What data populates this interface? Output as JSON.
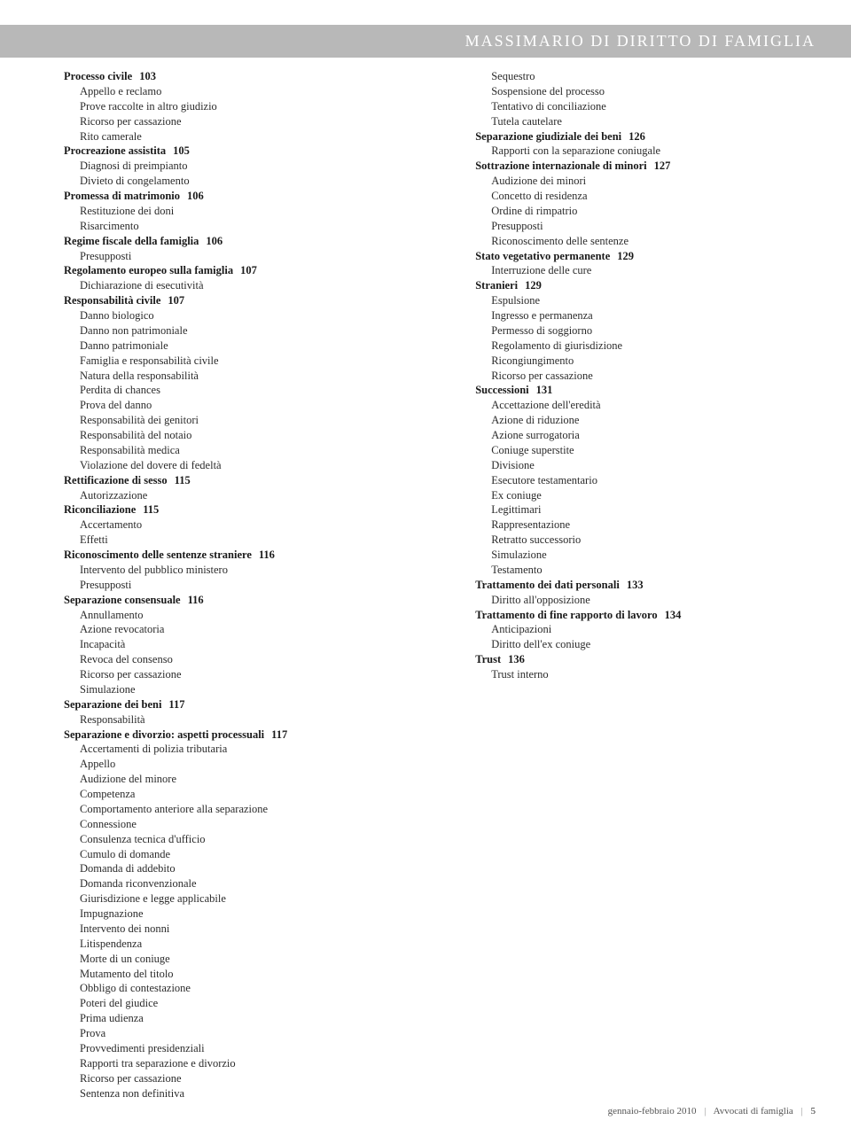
{
  "header": "MASSIMARIO DI DIRITTO DI FAMIGLIA",
  "footer": {
    "date": "gennaio-febbraio 2010",
    "pub": "Avvocati di famiglia",
    "page": "5"
  },
  "left": [
    {
      "h": "Processo civile",
      "pg": "103",
      "subs": [
        "Appello e reclamo",
        "Prove raccolte in altro giudizio",
        "Ricorso per cassazione",
        "Rito camerale"
      ]
    },
    {
      "h": "Procreazione assistita",
      "pg": "105",
      "subs": [
        "Diagnosi di preimpianto",
        "Divieto di congelamento"
      ]
    },
    {
      "h": "Promessa di matrimonio",
      "pg": "106",
      "subs": [
        "Restituzione dei doni",
        "Risarcimento"
      ]
    },
    {
      "h": "Regime fiscale della famiglia",
      "pg": "106",
      "subs": [
        "Presupposti"
      ]
    },
    {
      "h": "Regolamento europeo sulla famiglia",
      "pg": "107",
      "subs": [
        "Dichiarazione di esecutività"
      ]
    },
    {
      "h": "Responsabilità civile",
      "pg": "107",
      "subs": [
        "Danno biologico",
        "Danno non patrimoniale",
        "Danno patrimoniale",
        "Famiglia e responsabilità civile",
        "Natura della responsabilità",
        "Perdita di chances",
        "Prova del danno",
        "Responsabilità dei genitori",
        "Responsabilità del notaio",
        "Responsabilità medica",
        "Violazione del dovere di fedeltà"
      ]
    },
    {
      "h": "Rettificazione di sesso",
      "pg": "115",
      "subs": [
        "Autorizzazione"
      ]
    },
    {
      "h": "Riconciliazione",
      "pg": "115",
      "subs": [
        "Accertamento",
        "Effetti"
      ]
    },
    {
      "h": "Riconoscimento delle sentenze straniere",
      "pg": "116",
      "subs": [
        "Intervento del pubblico ministero",
        "Presupposti"
      ]
    },
    {
      "h": "Separazione consensuale",
      "pg": "116",
      "subs": [
        "Annullamento",
        "Azione revocatoria",
        "Incapacità",
        "Revoca del consenso",
        "Ricorso per cassazione",
        "Simulazione"
      ]
    },
    {
      "h": "Separazione dei beni",
      "pg": "117",
      "subs": [
        "Responsabilità"
      ]
    },
    {
      "h": "Separazione e divorzio: aspetti processuali",
      "pg": "117",
      "subs": [
        "Accertamenti di polizia tributaria",
        "Appello",
        "Audizione del minore",
        "Competenza",
        "Comportamento anteriore alla separazione",
        "Connessione",
        "Consulenza tecnica d'ufficio",
        "Cumulo di domande",
        "Domanda di addebito",
        "Domanda riconvenzionale",
        "Giurisdizione e legge applicabile",
        "Impugnazione",
        "Intervento dei nonni",
        "Litispendenza",
        "Morte di un coniuge",
        "Mutamento del titolo",
        "Obbligo di contestazione",
        "Poteri del giudice",
        "Prima udienza",
        "Prova",
        "Provvedimenti presidenziali",
        "Rapporti tra separazione e divorzio",
        "Ricorso per cassazione",
        "Sentenza non definitiva"
      ]
    }
  ],
  "right": [
    {
      "h": "",
      "pg": "",
      "subs": [
        "Sequestro",
        "Sospensione del processo",
        "Tentativo di conciliazione",
        "Tutela cautelare"
      ]
    },
    {
      "h": "Separazione giudiziale dei beni",
      "pg": "126",
      "subs": [
        "Rapporti con la separazione coniugale"
      ]
    },
    {
      "h": "Sottrazione internazionale di minori",
      "pg": "127",
      "subs": [
        "Audizione dei minori",
        "Concetto di residenza",
        "Ordine di rimpatrio",
        "Presupposti",
        "Riconoscimento delle sentenze"
      ]
    },
    {
      "h": "Stato vegetativo permanente",
      "pg": "129",
      "subs": [
        "Interruzione delle cure"
      ]
    },
    {
      "h": "Stranieri",
      "pg": "129",
      "subs": [
        "Espulsione",
        "Ingresso e permanenza",
        "Permesso di soggiorno",
        "Regolamento di giurisdizione",
        "Ricongiungimento",
        "Ricorso per cassazione"
      ]
    },
    {
      "h": "Successioni",
      "pg": "131",
      "subs": [
        "Accettazione dell'eredità",
        "Azione di riduzione",
        "Azione surrogatoria",
        "Coniuge superstite",
        "Divisione",
        "Esecutore testamentario",
        "Ex coniuge",
        "Legittimari",
        "Rappresentazione",
        "Retratto successorio",
        "Simulazione",
        "Testamento"
      ]
    },
    {
      "h": "Trattamento dei dati personali",
      "pg": "133",
      "subs": [
        "Diritto all'opposizione"
      ]
    },
    {
      "h": "Trattamento di fine rapporto di lavoro",
      "pg": "134",
      "subs": [
        "Anticipazioni",
        "Diritto dell'ex coniuge"
      ]
    },
    {
      "h": "Trust",
      "pg": "136",
      "subs": [
        "Trust interno"
      ]
    }
  ]
}
